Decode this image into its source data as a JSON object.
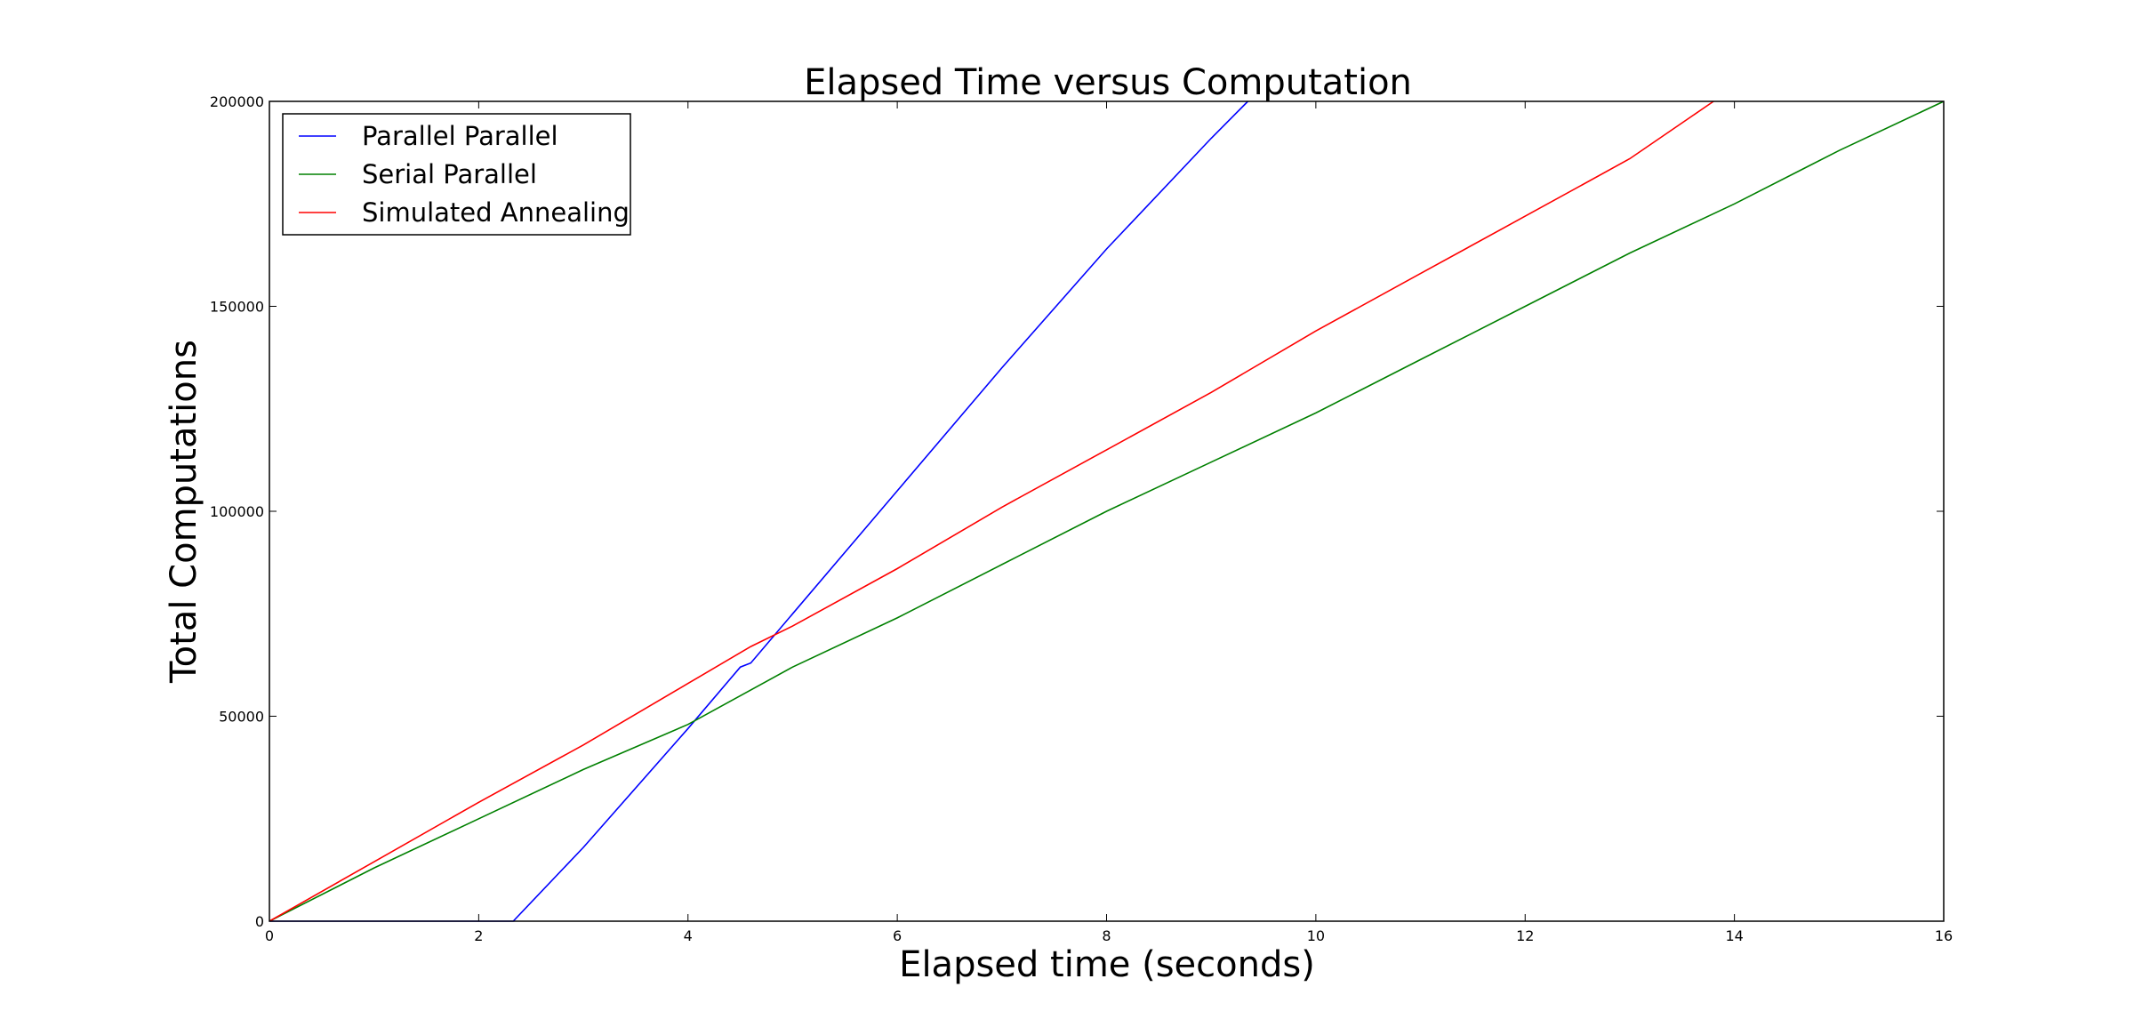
{
  "chart_data": {
    "type": "line",
    "title": "Elapsed Time versus Computation",
    "xlabel": "Elapsed time (seconds)",
    "ylabel": "Total Computations",
    "xlim": [
      0,
      16
    ],
    "ylim": [
      0,
      200000
    ],
    "x_ticks": [
      "0",
      "2",
      "4",
      "6",
      "8",
      "10",
      "12",
      "14",
      "16"
    ],
    "y_ticks": [
      "0",
      "50000",
      "100000",
      "150000",
      "200000"
    ],
    "grid": false,
    "legend_position": "top-left",
    "series": [
      {
        "name": "Parallel Parallel",
        "color": "#0000ff",
        "points": [
          [
            0,
            0
          ],
          [
            2.33,
            0
          ],
          [
            3.0,
            18000
          ],
          [
            4.0,
            47000
          ],
          [
            4.5,
            62000
          ],
          [
            4.6,
            63000
          ],
          [
            5.0,
            75000
          ],
          [
            6.0,
            105000
          ],
          [
            7.0,
            135000
          ],
          [
            8.0,
            164000
          ],
          [
            9.0,
            191000
          ],
          [
            9.35,
            200000
          ]
        ]
      },
      {
        "name": "Serial Parallel",
        "color": "#008000",
        "points": [
          [
            0,
            0
          ],
          [
            1.0,
            13000
          ],
          [
            2.0,
            25000
          ],
          [
            3.0,
            37000
          ],
          [
            4.0,
            48000
          ],
          [
            5.0,
            62000
          ],
          [
            6.0,
            74000
          ],
          [
            7.0,
            87000
          ],
          [
            8.0,
            100000
          ],
          [
            9.0,
            112000
          ],
          [
            10.0,
            124000
          ],
          [
            11.0,
            137000
          ],
          [
            12.0,
            150000
          ],
          [
            13.0,
            163000
          ],
          [
            14.0,
            175000
          ],
          [
            15.0,
            188000
          ],
          [
            16.0,
            200000
          ]
        ]
      },
      {
        "name": "Simulated Annealing",
        "color": "#ff0000",
        "points": [
          [
            0,
            0
          ],
          [
            1.0,
            14500
          ],
          [
            2.0,
            29000
          ],
          [
            3.0,
            43000
          ],
          [
            4.0,
            58000
          ],
          [
            4.6,
            67000
          ],
          [
            5.0,
            72000
          ],
          [
            6.0,
            86000
          ],
          [
            7.0,
            101000
          ],
          [
            8.0,
            115000
          ],
          [
            9.0,
            129000
          ],
          [
            10.0,
            144000
          ],
          [
            11.0,
            158000
          ],
          [
            12.0,
            172000
          ],
          [
            13.0,
            186000
          ],
          [
            13.8,
            200000
          ]
        ]
      }
    ]
  }
}
